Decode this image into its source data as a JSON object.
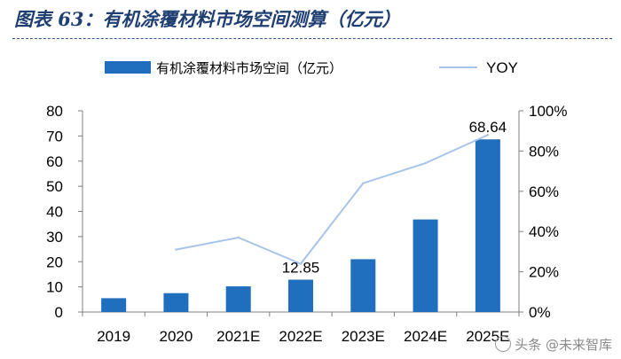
{
  "figure_title": "图表 63：有机涂覆材料市场空间测算（亿元）",
  "watermark": "头条 @未来智库",
  "chart_data": {
    "type": "bar",
    "title": "有机涂覆材料市场空间测算（亿元）",
    "categories": [
      "2019",
      "2020",
      "2021E",
      "2022E",
      "2023E",
      "2024E",
      "2025E"
    ],
    "series": [
      {
        "name": "有机涂覆材料市场空间（亿元）",
        "kind": "bar",
        "axis": "left",
        "color": "#1f6fbe",
        "values": [
          5.5,
          7.5,
          10.2,
          12.85,
          21.0,
          36.8,
          68.64
        ]
      },
      {
        "name": "YOY",
        "kind": "line",
        "axis": "right",
        "color": "#a8c4ea",
        "values": [
          null,
          31,
          37,
          24,
          64,
          74,
          88
        ]
      }
    ],
    "data_labels": [
      {
        "category": "2022E",
        "text": "12.85"
      },
      {
        "category": "2025E",
        "text": "68.64"
      }
    ],
    "left_axis": {
      "ylim": [
        0,
        80
      ],
      "ticks": [
        "0",
        "10",
        "20",
        "30",
        "40",
        "50",
        "60",
        "70",
        "80"
      ]
    },
    "right_axis": {
      "ylim": [
        0,
        100
      ],
      "ticks": [
        "0%",
        "20%",
        "40%",
        "60%",
        "80%",
        "100%"
      ]
    },
    "legend": {
      "position": "top"
    },
    "grid": false
  }
}
